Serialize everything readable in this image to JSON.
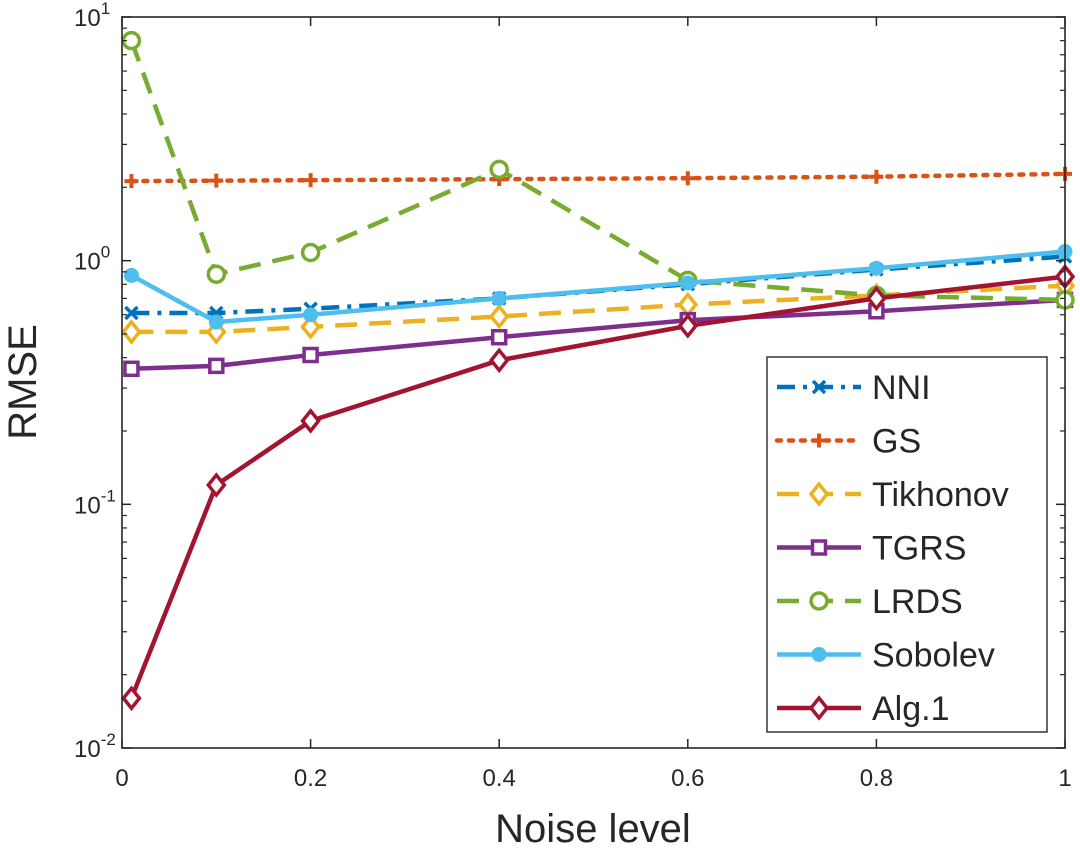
{
  "chart_data": {
    "type": "line",
    "title": "",
    "xlabel": "Noise level",
    "ylabel": "RMSE",
    "xlim": [
      0,
      1
    ],
    "ylim": [
      0.01,
      10
    ],
    "yscale": "log",
    "grid": false,
    "legend_position": "bottom-right",
    "x": [
      0.01,
      0.1,
      0.2,
      0.4,
      0.6,
      0.8,
      1
    ],
    "x_ticks": [
      {
        "value": 0,
        "label": "0"
      },
      {
        "value": 0.2,
        "label": "0.2"
      },
      {
        "value": 0.4,
        "label": "0.4"
      },
      {
        "value": 0.6,
        "label": "0.6"
      },
      {
        "value": 0.8,
        "label": "0.8"
      },
      {
        "value": 1,
        "label": "1"
      }
    ],
    "y_ticks": [
      {
        "value": 0.01,
        "base": "10",
        "exp": "-2"
      },
      {
        "value": 0.1,
        "base": "10",
        "exp": "-1"
      },
      {
        "value": 1,
        "base": "10",
        "exp": "0"
      },
      {
        "value": 10,
        "base": "10",
        "exp": "1"
      }
    ],
    "series": [
      {
        "name": "NNI",
        "color": "#0072BD",
        "dash": "dashdot",
        "marker": "x",
        "values": [
          0.61,
          0.61,
          0.635,
          0.7,
          0.8,
          0.92,
          1.04
        ]
      },
      {
        "name": "GS",
        "color": "#D95319",
        "dash": "dotted",
        "marker": "plus",
        "values": [
          2.12,
          2.13,
          2.14,
          2.16,
          2.18,
          2.21,
          2.27
        ]
      },
      {
        "name": "Tikhonov",
        "color": "#EDB120",
        "dash": "dashed",
        "marker": "diamond",
        "values": [
          0.51,
          0.51,
          0.535,
          0.59,
          0.66,
          0.72,
          0.79
        ]
      },
      {
        "name": "TGRS",
        "color": "#7E2F8E",
        "dash": "solid",
        "marker": "square",
        "values": [
          0.36,
          0.37,
          0.41,
          0.485,
          0.57,
          0.62,
          0.69
        ]
      },
      {
        "name": "LRDS",
        "color": "#77AC30",
        "dash": "dashed",
        "marker": "circle",
        "values": [
          8.0,
          0.88,
          1.08,
          2.37,
          0.83,
          0.72,
          0.69
        ]
      },
      {
        "name": "Sobolev",
        "color": "#4DBEEE",
        "dash": "solid",
        "marker": "dot",
        "values": [
          0.87,
          0.56,
          0.6,
          0.7,
          0.81,
          0.93,
          1.09
        ]
      },
      {
        "name": "Alg.1",
        "color": "#A2142F",
        "dash": "solid",
        "marker": "diamond",
        "values": [
          0.016,
          0.12,
          0.22,
          0.39,
          0.54,
          0.7,
          0.86
        ]
      }
    ]
  }
}
